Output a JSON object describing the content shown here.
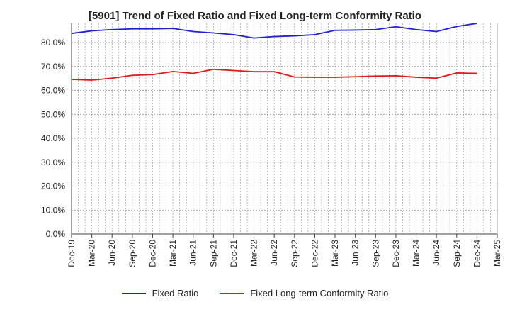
{
  "chart_data": {
    "type": "line",
    "title": "[5901]  Trend of Fixed Ratio and Fixed Long-term Conformity Ratio",
    "xlabel": "",
    "ylabel": "",
    "x": [
      "Dec-19",
      "Mar-20",
      "Jun-20",
      "Sep-20",
      "Dec-20",
      "Mar-21",
      "Jun-21",
      "Sep-21",
      "Dec-21",
      "Mar-22",
      "Jun-22",
      "Sep-22",
      "Dec-22",
      "Mar-23",
      "Jun-23",
      "Sep-23",
      "Dec-23",
      "Mar-24",
      "Jun-24",
      "Sep-24",
      "Dec-24"
    ],
    "x_ticks": [
      "Dec-19",
      "Mar-20",
      "Jun-20",
      "Sep-20",
      "Dec-20",
      "Mar-21",
      "Jun-21",
      "Sep-21",
      "Dec-21",
      "Mar-22",
      "Jun-22",
      "Sep-22",
      "Dec-22",
      "Mar-23",
      "Jun-23",
      "Sep-23",
      "Dec-23",
      "Mar-24",
      "Jun-24",
      "Sep-24",
      "Dec-24",
      "Mar-25"
    ],
    "y_ticks": [
      "0.0%",
      "10.0%",
      "20.0%",
      "30.0%",
      "40.0%",
      "50.0%",
      "60.0%",
      "70.0%",
      "80.0%"
    ],
    "ylim": [
      0,
      88
    ],
    "grid": true,
    "legend_position": "bottom",
    "series": [
      {
        "name": "Fixed Ratio",
        "color": "#1f1fd0",
        "values": [
          83.8,
          84.9,
          85.4,
          85.7,
          85.7,
          85.9,
          84.6,
          84.0,
          83.3,
          81.9,
          82.5,
          82.8,
          83.3,
          85.1,
          85.2,
          85.4,
          86.6,
          85.4,
          84.6,
          86.7,
          88.0
        ]
      },
      {
        "name": "Fixed Long-term Conformity Ratio",
        "color": "#e01818",
        "values": [
          64.6,
          64.3,
          65.1,
          66.3,
          66.6,
          67.9,
          67.1,
          68.8,
          68.3,
          67.8,
          67.8,
          65.6,
          65.5,
          65.5,
          65.7,
          66.0,
          66.1,
          65.5,
          65.1,
          67.3,
          67.1
        ]
      }
    ]
  }
}
